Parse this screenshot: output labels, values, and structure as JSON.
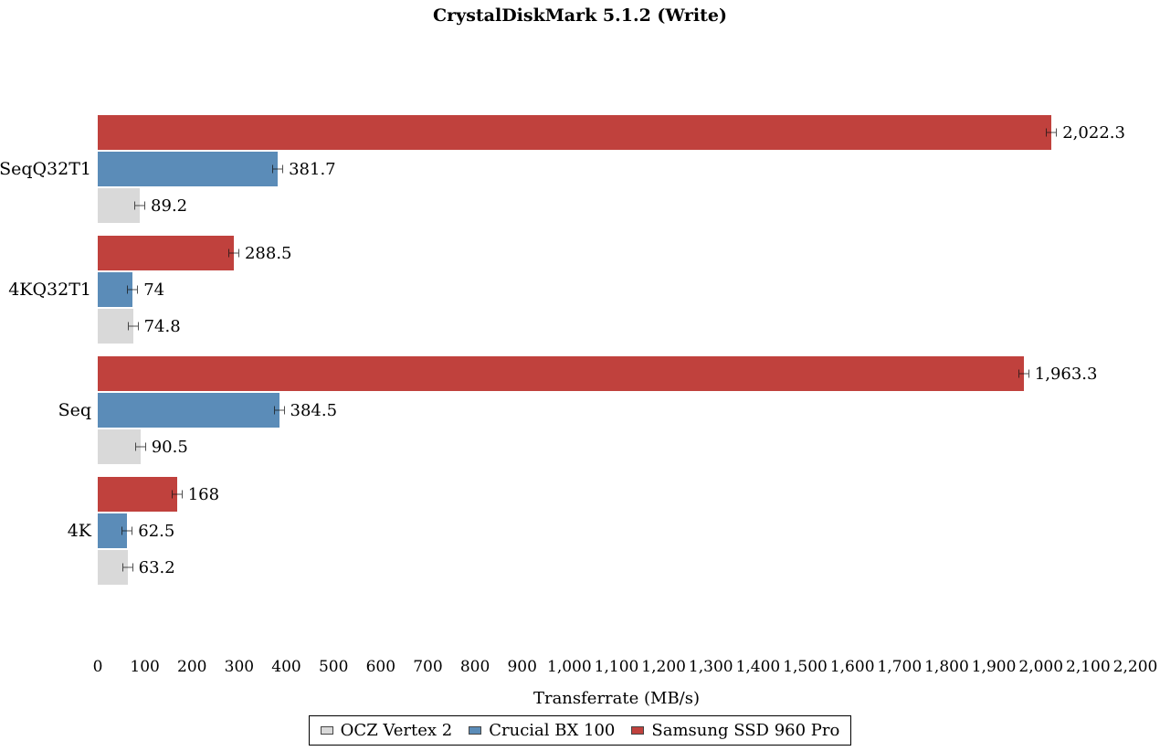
{
  "title": "CrystalDiskMark 5.1.2 (Write)",
  "chart_data": {
    "type": "bar",
    "orientation": "horizontal",
    "title": "CrystalDiskMark 5.1.2 (Write)",
    "xlabel": "Transferrate (MB/s)",
    "xlim": [
      0,
      2200
    ],
    "grid": false,
    "legend_position": "bottom",
    "error_bars": true,
    "categories": [
      "SeqQ32T1",
      "4KQ32T1",
      "Seq",
      "4K"
    ],
    "series": [
      {
        "name": "Samsung SSD 960 Pro",
        "color": "#c0413d",
        "values": [
          2022.3,
          288.5,
          1963.3,
          168
        ],
        "value_labels": [
          "2,022.3",
          "288.5",
          "1,963.3",
          "168"
        ]
      },
      {
        "name": "Crucial BX 100",
        "color": "#5b8cb8",
        "values": [
          381.7,
          74,
          384.5,
          62.5
        ],
        "value_labels": [
          "381.7",
          "74",
          "384.5",
          "62.5"
        ]
      },
      {
        "name": "OCZ Vertex 2",
        "color": "#d9d9d9",
        "values": [
          89.2,
          74.8,
          90.5,
          63.2
        ],
        "value_labels": [
          "89.2",
          "74.8",
          "90.5",
          "63.2"
        ]
      }
    ],
    "xticks": [
      0,
      100,
      200,
      300,
      400,
      500,
      600,
      700,
      800,
      900,
      1000,
      1100,
      1200,
      1300,
      1400,
      1500,
      1600,
      1700,
      1800,
      1900,
      2000,
      2100,
      2200
    ],
    "xtick_labels": [
      "0",
      "100",
      "200",
      "300",
      "400",
      "500",
      "600",
      "700",
      "800",
      "900",
      "1,000",
      "1,100",
      "1,200",
      "1,300",
      "1,400",
      "1,500",
      "1,600",
      "1,700",
      "1,800",
      "1,900",
      "2,000",
      "2,100",
      "2,200"
    ],
    "legend": [
      "OCZ Vertex 2",
      "Crucial BX 100",
      "Samsung SSD 960 Pro"
    ]
  }
}
